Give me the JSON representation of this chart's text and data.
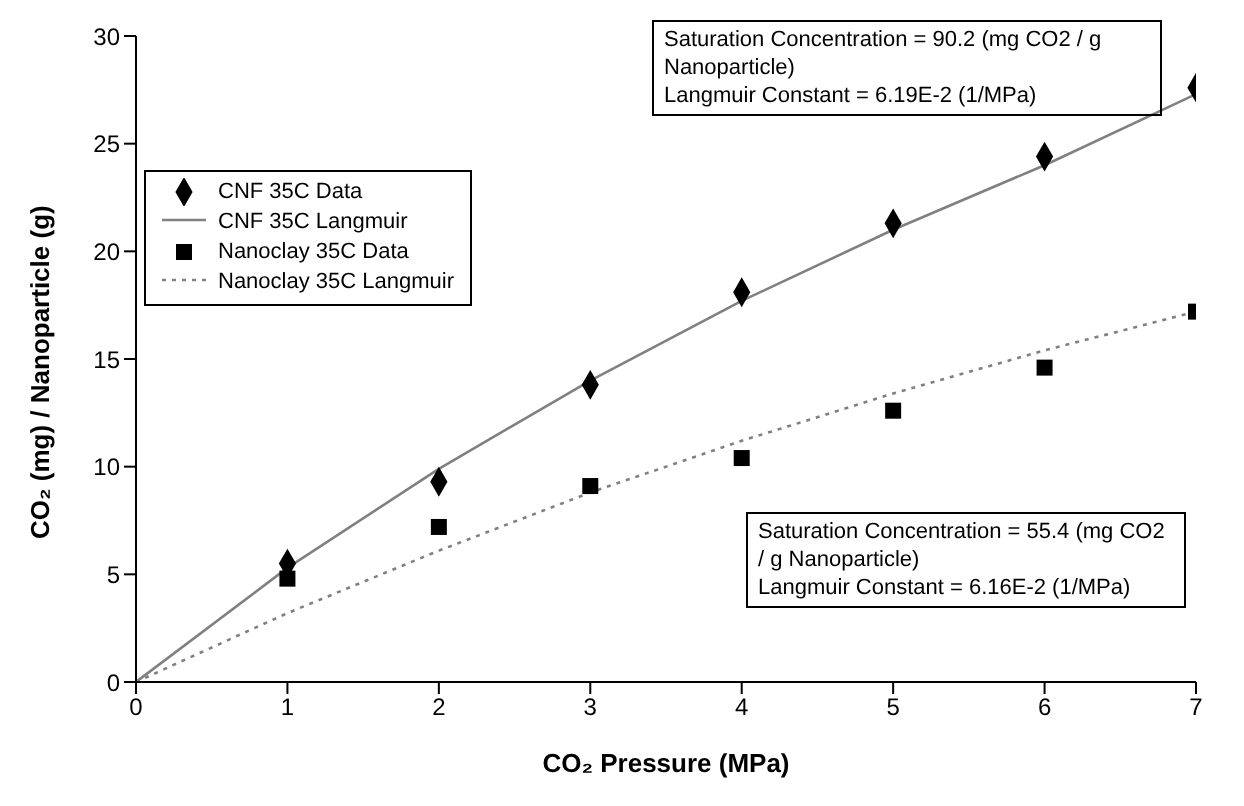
{
  "chart_data": {
    "type": "scatter",
    "xlabel": "CO₂ Pressure (MPa)",
    "ylabel": "CO₂ (mg) / Nanoparticle (g)",
    "xlim": [
      0,
      7
    ],
    "xticks": [
      0,
      1,
      2,
      3,
      4,
      5,
      6,
      7
    ],
    "ylim": [
      0,
      30
    ],
    "yticks": [
      0,
      5,
      10,
      15,
      20,
      25,
      30
    ],
    "grid": false,
    "legend": "top left",
    "series": [
      {
        "name": "CNF 35C Data",
        "type": "scatter",
        "marker": "diamond",
        "color": "#000000",
        "x": [
          1,
          2,
          3,
          4,
          5,
          6,
          7
        ],
        "values": [
          5.5,
          9.3,
          13.8,
          18.1,
          21.3,
          24.4,
          27.6
        ]
      },
      {
        "name": "CNF 35C Langmuir",
        "type": "line",
        "line_style": "solid",
        "color": "#808080",
        "x": [
          0,
          1,
          2,
          3,
          4,
          5,
          6,
          7
        ],
        "values": [
          0,
          5.3,
          9.9,
          14.0,
          17.7,
          21.0,
          24.0,
          27.3
        ]
      },
      {
        "name": "Nanoclay 35C Data",
        "type": "scatter",
        "marker": "square",
        "color": "#000000",
        "x": [
          1,
          2,
          3,
          4,
          5,
          6,
          7
        ],
        "values": [
          4.8,
          7.2,
          9.1,
          10.4,
          12.6,
          14.6,
          17.2
        ]
      },
      {
        "name": "Nanoclay 35C Langmuir",
        "type": "line",
        "line_style": "dotted",
        "color": "#808080",
        "x": [
          0,
          1,
          2,
          3,
          4,
          5,
          6,
          7
        ],
        "values": [
          0,
          3.2,
          6.1,
          8.8,
          11.2,
          13.4,
          15.4,
          17.2
        ]
      }
    ],
    "annotations": [
      "Saturation Concentration = 90.2 (mg CO2 / g Nanoparticle)",
      "Langmuir Constant = 6.19E-2 (1/MPa)",
      "Saturation Concentration = 55.4 (mg CO2 / g Nanoparticle)",
      "Langmuir Constant = 6.16E-2 (1/MPa)"
    ]
  }
}
